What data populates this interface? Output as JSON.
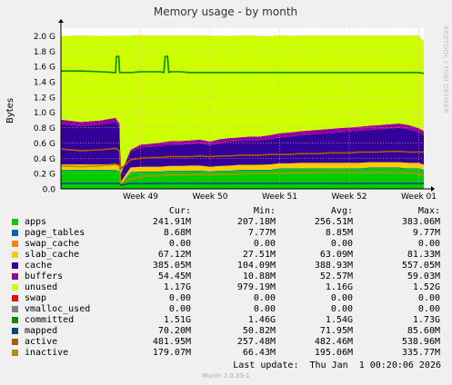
{
  "title": "Memory usage - by month",
  "side_label": "RRDTOOL / TOBI OETIKER",
  "footer": "Munin 2.0.33-1",
  "last_update": "Last update:  Thu Jan  1 00:20:06 2026",
  "legend_headers": {
    "cur": "Cur:",
    "min": "Min:",
    "avg": "Avg:",
    "max": "Max:"
  },
  "legend": [
    {
      "name": "apps",
      "color": "#00cc00",
      "cur": "241.91M",
      "min": "207.18M",
      "avg": "256.51M",
      "max": "383.06M"
    },
    {
      "name": "page_tables",
      "color": "#0066b3",
      "cur": "8.68M",
      "min": "7.77M",
      "avg": "8.85M",
      "max": "9.77M"
    },
    {
      "name": "swap_cache",
      "color": "#ff8000",
      "cur": "0.00",
      "min": "0.00",
      "avg": "0.00",
      "max": "0.00"
    },
    {
      "name": "slab_cache",
      "color": "#ffcc00",
      "cur": "67.12M",
      "min": "27.51M",
      "avg": "63.09M",
      "max": "81.33M"
    },
    {
      "name": "cache",
      "color": "#330099",
      "cur": "385.05M",
      "min": "104.09M",
      "avg": "388.93M",
      "max": "557.05M"
    },
    {
      "name": "buffers",
      "color": "#990099",
      "cur": "54.45M",
      "min": "10.88M",
      "avg": "52.57M",
      "max": "59.03M"
    },
    {
      "name": "unused",
      "color": "#ccff00",
      "cur": "1.17G",
      "min": "979.19M",
      "avg": "1.16G",
      "max": "1.52G"
    },
    {
      "name": "swap",
      "color": "#ff0000",
      "cur": "0.00",
      "min": "0.00",
      "avg": "0.00",
      "max": "0.00"
    },
    {
      "name": "vmalloc_used",
      "color": "#808080",
      "cur": "0.00",
      "min": "0.00",
      "avg": "0.00",
      "max": "0.00"
    },
    {
      "name": "committed",
      "color": "#008f00",
      "cur": "1.51G",
      "min": "1.46G",
      "avg": "1.54G",
      "max": "1.73G"
    },
    {
      "name": "mapped",
      "color": "#00487d",
      "cur": "70.20M",
      "min": "50.82M",
      "avg": "71.95M",
      "max": "85.60M"
    },
    {
      "name": "active",
      "color": "#b35a00",
      "cur": "481.95M",
      "min": "257.48M",
      "avg": "482.46M",
      "max": "538.96M"
    },
    {
      "name": "inactive",
      "color": "#b38f00",
      "cur": "179.07M",
      "min": "66.43M",
      "avg": "195.06M",
      "max": "335.77M"
    }
  ],
  "chart_data": {
    "type": "area",
    "title": "Memory usage - by month",
    "ylabel": "Bytes",
    "ylim": [
      0,
      2.1
    ],
    "yunit": "G",
    "yticks": [
      "0.0",
      "0.2 G",
      "0.4 G",
      "0.6 G",
      "0.8 G",
      "1.0 G",
      "1.2 G",
      "1.4 G",
      "1.6 G",
      "1.8 G",
      "2.0 G"
    ],
    "xticks": [
      "Week 49",
      "Week 50",
      "Week 51",
      "Week 52",
      "Week 01"
    ],
    "xtick_positions_days": [
      8,
      15,
      22,
      29,
      36
    ],
    "xlim_days": [
      0,
      36.5
    ],
    "grid": true,
    "stack_order": [
      "apps",
      "page_tables",
      "swap_cache",
      "slab_cache",
      "cache",
      "buffers",
      "unused"
    ],
    "x_days": [
      0,
      2,
      4,
      5.5,
      5.9,
      6.0,
      7,
      8,
      9,
      10,
      11,
      12,
      13,
      14,
      15,
      16,
      17,
      18,
      19,
      20,
      21,
      22,
      23,
      24,
      25,
      26,
      27,
      28,
      29,
      30,
      31,
      32,
      33,
      34,
      35,
      36,
      36.5
    ],
    "series": [
      {
        "name": "apps",
        "values": [
          0.24,
          0.24,
          0.24,
          0.24,
          0.22,
          0.05,
          0.21,
          0.22,
          0.22,
          0.22,
          0.23,
          0.23,
          0.23,
          0.23,
          0.22,
          0.23,
          0.23,
          0.24,
          0.24,
          0.24,
          0.24,
          0.26,
          0.26,
          0.26,
          0.26,
          0.26,
          0.26,
          0.26,
          0.26,
          0.26,
          0.27,
          0.27,
          0.27,
          0.27,
          0.26,
          0.26,
          0.24
        ]
      },
      {
        "name": "page_tables",
        "values": [
          0.009,
          0.009,
          0.009,
          0.009,
          0.009,
          0.008,
          0.009,
          0.009,
          0.009,
          0.009,
          0.009,
          0.009,
          0.009,
          0.009,
          0.009,
          0.009,
          0.009,
          0.009,
          0.009,
          0.009,
          0.009,
          0.009,
          0.009,
          0.009,
          0.009,
          0.009,
          0.009,
          0.009,
          0.009,
          0.009,
          0.009,
          0.009,
          0.009,
          0.009,
          0.009,
          0.009,
          0.009
        ]
      },
      {
        "name": "swap_cache",
        "values": [
          0,
          0,
          0,
          0,
          0,
          0,
          0,
          0,
          0,
          0,
          0,
          0,
          0,
          0,
          0,
          0,
          0,
          0,
          0,
          0,
          0,
          0,
          0,
          0,
          0,
          0,
          0,
          0,
          0,
          0,
          0,
          0,
          0,
          0,
          0,
          0,
          0
        ]
      },
      {
        "name": "slab_cache",
        "values": [
          0.07,
          0.07,
          0.07,
          0.075,
          0.07,
          0.03,
          0.06,
          0.06,
          0.06,
          0.06,
          0.06,
          0.06,
          0.065,
          0.065,
          0.06,
          0.06,
          0.065,
          0.065,
          0.065,
          0.065,
          0.07,
          0.065,
          0.065,
          0.07,
          0.07,
          0.07,
          0.07,
          0.07,
          0.07,
          0.07,
          0.07,
          0.07,
          0.07,
          0.07,
          0.07,
          0.07,
          0.067
        ]
      },
      {
        "name": "cache",
        "values": [
          0.53,
          0.5,
          0.52,
          0.55,
          0.5,
          0.1,
          0.2,
          0.25,
          0.26,
          0.27,
          0.28,
          0.28,
          0.28,
          0.29,
          0.28,
          0.3,
          0.31,
          0.31,
          0.32,
          0.32,
          0.33,
          0.34,
          0.35,
          0.36,
          0.37,
          0.38,
          0.39,
          0.4,
          0.41,
          0.42,
          0.42,
          0.43,
          0.44,
          0.45,
          0.44,
          0.4,
          0.385
        ]
      },
      {
        "name": "buffers",
        "values": [
          0.055,
          0.055,
          0.055,
          0.055,
          0.05,
          0.011,
          0.03,
          0.04,
          0.04,
          0.045,
          0.045,
          0.045,
          0.05,
          0.05,
          0.05,
          0.05,
          0.05,
          0.05,
          0.05,
          0.05,
          0.052,
          0.052,
          0.053,
          0.053,
          0.053,
          0.054,
          0.054,
          0.054,
          0.054,
          0.054,
          0.055,
          0.055,
          0.055,
          0.055,
          0.055,
          0.055,
          0.054
        ]
      },
      {
        "name": "unused",
        "values": [
          1.09,
          1.13,
          1.1,
          1.07,
          1.15,
          1.8,
          1.49,
          1.43,
          1.41,
          1.4,
          1.38,
          1.38,
          1.37,
          1.36,
          1.38,
          1.35,
          1.33,
          1.33,
          1.32,
          1.31,
          1.29,
          1.28,
          1.26,
          1.25,
          1.24,
          1.23,
          1.22,
          1.21,
          1.2,
          1.19,
          1.18,
          1.17,
          1.16,
          1.15,
          1.17,
          1.21,
          1.17
        ]
      },
      {
        "name": "committed",
        "values": [
          1.54,
          1.54,
          1.53,
          1.52,
          1.52,
          1.52,
          1.52,
          1.53,
          1.53,
          1.53,
          1.53,
          1.53,
          1.52,
          1.52,
          1.52,
          1.52,
          1.52,
          1.52,
          1.52,
          1.52,
          1.52,
          1.52,
          1.52,
          1.52,
          1.52,
          1.52,
          1.52,
          1.52,
          1.52,
          1.52,
          1.52,
          1.52,
          1.52,
          1.52,
          1.52,
          1.52,
          1.51
        ]
      },
      {
        "name": "mapped",
        "values": [
          0.07,
          0.07,
          0.07,
          0.07,
          0.07,
          0.05,
          0.07,
          0.07,
          0.07,
          0.07,
          0.07,
          0.07,
          0.07,
          0.07,
          0.07,
          0.07,
          0.07,
          0.07,
          0.07,
          0.07,
          0.07,
          0.07,
          0.07,
          0.07,
          0.07,
          0.07,
          0.07,
          0.07,
          0.07,
          0.07,
          0.07,
          0.07,
          0.07,
          0.07,
          0.07,
          0.07,
          0.07
        ]
      },
      {
        "name": "active",
        "values": [
          0.52,
          0.5,
          0.51,
          0.53,
          0.5,
          0.26,
          0.38,
          0.4,
          0.41,
          0.41,
          0.42,
          0.42,
          0.42,
          0.43,
          0.42,
          0.43,
          0.43,
          0.44,
          0.44,
          0.44,
          0.45,
          0.45,
          0.45,
          0.46,
          0.46,
          0.46,
          0.47,
          0.47,
          0.47,
          0.48,
          0.48,
          0.48,
          0.49,
          0.49,
          0.48,
          0.48,
          0.48
        ]
      },
      {
        "name": "inactive",
        "values": [
          0.3,
          0.29,
          0.3,
          0.32,
          0.3,
          0.07,
          0.13,
          0.16,
          0.17,
          0.17,
          0.18,
          0.18,
          0.18,
          0.19,
          0.18,
          0.19,
          0.19,
          0.19,
          0.2,
          0.2,
          0.2,
          0.2,
          0.21,
          0.21,
          0.21,
          0.22,
          0.22,
          0.22,
          0.22,
          0.22,
          0.22,
          0.22,
          0.22,
          0.22,
          0.21,
          0.19,
          0.18
        ]
      }
    ],
    "committed_spikes": [
      {
        "x_days": 5.7,
        "value": 1.73
      },
      {
        "x_days": 10.6,
        "value": 1.73
      }
    ]
  }
}
